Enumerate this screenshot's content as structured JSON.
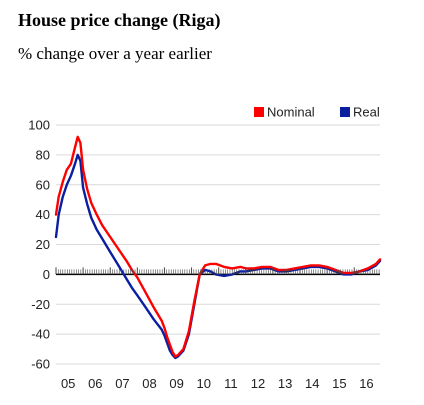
{
  "header": {
    "title": "House price change (Riga)",
    "subtitle": "% change over a year earlier"
  },
  "chart_data": {
    "type": "line",
    "title": "House price change (Riga)",
    "subtitle": "% change over a year earlier",
    "xlabel": "",
    "ylabel": "",
    "xlim": [
      2005,
      2016.95
    ],
    "ylim": [
      -60,
      100
    ],
    "yticks": [
      100,
      80,
      60,
      40,
      20,
      0,
      -20,
      -40,
      -60
    ],
    "yticklabels": [
      "100",
      "80",
      "60",
      "40",
      "20",
      "0",
      "-20",
      "-40",
      "-60"
    ],
    "xticks": [
      2005,
      2006,
      2007,
      2008,
      2009,
      2010,
      2011,
      2012,
      2013,
      2014,
      2015,
      2016
    ],
    "xticklabels": [
      "05",
      "06",
      "07",
      "08",
      "09",
      "10",
      "11",
      "12",
      "13",
      "14",
      "15",
      "16"
    ],
    "grid": true,
    "legend_position": "top-right",
    "series": [
      {
        "name": "Nominal",
        "color": "#ff0000",
        "x": [
          2005.0,
          2005.1,
          2005.25,
          2005.4,
          2005.55,
          2005.7,
          2005.8,
          2005.9,
          2006.0,
          2006.15,
          2006.3,
          2006.5,
          2006.7,
          2007.0,
          2007.3,
          2007.6,
          2007.8,
          2008.0,
          2008.3,
          2008.6,
          2008.9,
          2009.0,
          2009.1,
          2009.2,
          2009.3,
          2009.4,
          2009.5,
          2009.7,
          2009.9,
          2010.1,
          2010.3,
          2010.5,
          2010.7,
          2010.9,
          2011.2,
          2011.5,
          2011.8,
          2012.0,
          2012.3,
          2012.6,
          2012.9,
          2013.2,
          2013.5,
          2013.8,
          2014.1,
          2014.4,
          2014.7,
          2015.0,
          2015.3,
          2015.6,
          2015.9,
          2016.2,
          2016.5,
          2016.8,
          2016.95
        ],
        "values": [
          40,
          52,
          62,
          70,
          74,
          85,
          92,
          88,
          70,
          57,
          48,
          40,
          33,
          25,
          17,
          9,
          3,
          -2,
          -12,
          -22,
          -31,
          -36,
          -42,
          -47,
          -52,
          -55,
          -54,
          -50,
          -38,
          -18,
          0,
          6,
          7,
          7,
          5,
          4,
          5,
          4,
          4,
          5,
          5,
          3,
          3,
          4,
          5,
          6,
          6,
          5,
          3,
          1,
          1,
          2,
          4,
          7,
          10
        ]
      },
      {
        "name": "Real",
        "color": "#0a1fa0",
        "x": [
          2005.0,
          2005.1,
          2005.25,
          2005.4,
          2005.55,
          2005.7,
          2005.8,
          2005.9,
          2006.0,
          2006.15,
          2006.3,
          2006.5,
          2006.7,
          2007.0,
          2007.3,
          2007.6,
          2007.8,
          2008.0,
          2008.3,
          2008.6,
          2008.9,
          2009.0,
          2009.1,
          2009.2,
          2009.3,
          2009.4,
          2009.5,
          2009.7,
          2009.9,
          2010.1,
          2010.3,
          2010.5,
          2010.7,
          2010.9,
          2011.2,
          2011.5,
          2011.8,
          2012.0,
          2012.3,
          2012.6,
          2012.9,
          2013.2,
          2013.5,
          2013.8,
          2014.1,
          2014.4,
          2014.7,
          2015.0,
          2015.3,
          2015.6,
          2015.9,
          2016.2,
          2016.5,
          2016.8,
          2016.95
        ],
        "values": [
          25,
          40,
          52,
          60,
          66,
          74,
          80,
          76,
          58,
          47,
          38,
          30,
          24,
          15,
          6,
          -3,
          -9,
          -14,
          -22,
          -30,
          -37,
          -41,
          -46,
          -51,
          -54,
          -56,
          -55,
          -51,
          -40,
          -20,
          0,
          3,
          2,
          0,
          -1,
          0,
          2,
          2,
          3,
          4,
          4,
          2,
          2,
          3,
          4,
          5,
          5,
          4,
          2,
          0,
          0,
          2,
          3,
          6,
          9
        ]
      }
    ]
  }
}
